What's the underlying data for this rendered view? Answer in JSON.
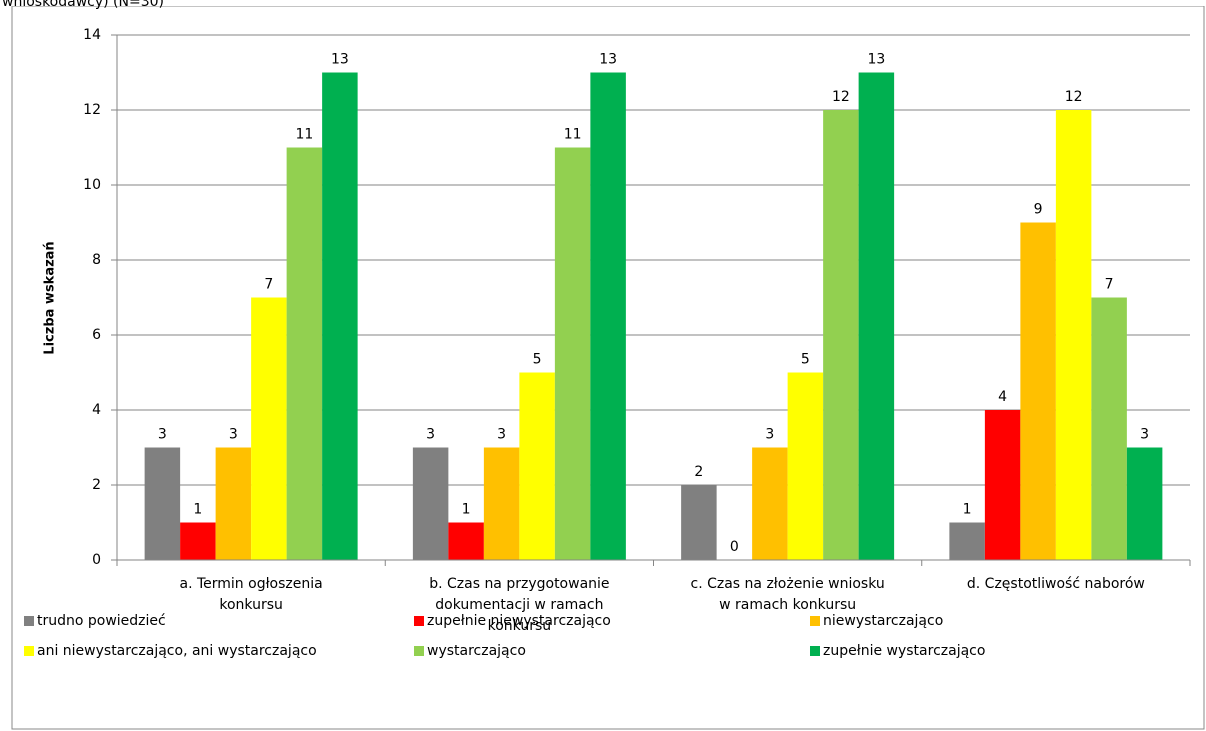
{
  "chart_data": {
    "type": "bar",
    "title": "wnioskodawcy) (N=30)",
    "y_label": "Liczba wskazań",
    "categories": [
      "a. Termin ogłoszenia\nkonkursu",
      "b. Czas na przygotowanie\ndokumentacji w ramach\nkonkursu",
      "c. Czas na złożenie wniosku\nw ramach konkursu",
      "d. Częstotliwość  naborów"
    ],
    "series": [
      {
        "name": "trudno powiedzieć",
        "color": "#808080",
        "values": [
          3,
          3,
          2,
          1
        ]
      },
      {
        "name": "zupełnie niewystarczająco",
        "color": "#ff0000",
        "values": [
          1,
          1,
          0,
          4
        ]
      },
      {
        "name": "niewystarczająco",
        "color": "#ffc000",
        "values": [
          3,
          3,
          3,
          9
        ]
      },
      {
        "name": "ani niewystarczająco,  ani wystarczająco",
        "color": "#ffff00",
        "values": [
          7,
          5,
          5,
          12
        ]
      },
      {
        "name": "wystarczająco",
        "color": "#92d050",
        "values": [
          11,
          11,
          12,
          7
        ]
      },
      {
        "name": "zupełnie wystarczająco",
        "color": "#00b050",
        "values": [
          13,
          13,
          13,
          3
        ]
      }
    ],
    "ylim": [
      0,
      14
    ],
    "yticks": [
      0,
      2,
      4,
      6,
      8,
      10,
      12,
      14
    ],
    "grid": true,
    "legend": "bottom"
  }
}
